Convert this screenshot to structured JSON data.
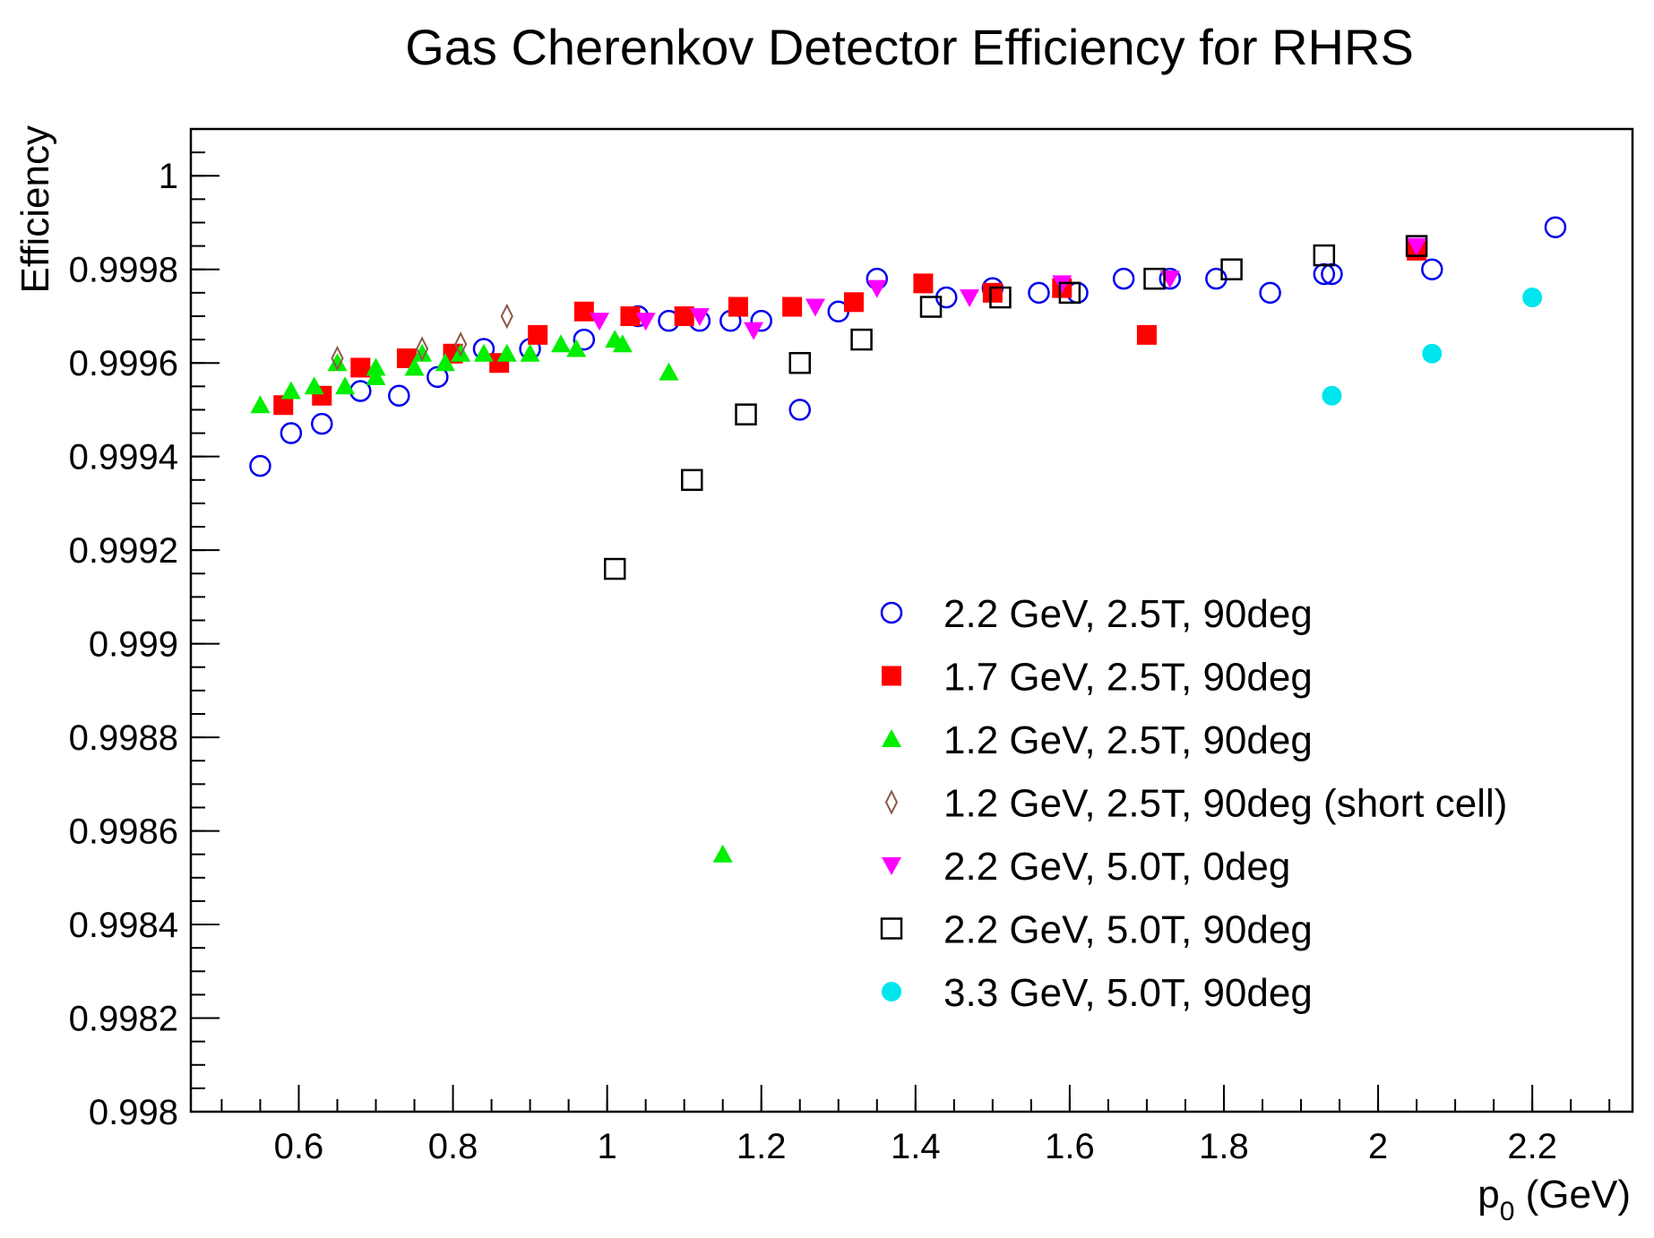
{
  "chart_data": {
    "type": "scatter",
    "title": "Gas Cherenkov Detector Efficiency for RHRS",
    "xlabel_main": "p",
    "xlabel_sub": "0",
    "xlabel_unit": " (GeV)",
    "ylabel": "Efficiency",
    "xlim": [
      0.46,
      2.33
    ],
    "ylim": [
      0.998,
      1.0001
    ],
    "x_ticks": [
      {
        "v": 0.6,
        "label": "0.6"
      },
      {
        "v": 0.8,
        "label": "0.8"
      },
      {
        "v": 1.0,
        "label": "1"
      },
      {
        "v": 1.2,
        "label": "1.2"
      },
      {
        "v": 1.4,
        "label": "1.4"
      },
      {
        "v": 1.6,
        "label": "1.6"
      },
      {
        "v": 1.8,
        "label": "1.8"
      },
      {
        "v": 2.0,
        "label": "2"
      },
      {
        "v": 2.2,
        "label": "2.2"
      }
    ],
    "y_ticks": [
      {
        "v": 0.998,
        "label": "0.998"
      },
      {
        "v": 0.9982,
        "label": "0.9982"
      },
      {
        "v": 0.9984,
        "label": "0.9984"
      },
      {
        "v": 0.9986,
        "label": "0.9986"
      },
      {
        "v": 0.9988,
        "label": "0.9988"
      },
      {
        "v": 0.999,
        "label": "0.999"
      },
      {
        "v": 0.9992,
        "label": "0.9992"
      },
      {
        "v": 0.9994,
        "label": "0.9994"
      },
      {
        "v": 0.9996,
        "label": "0.9996"
      },
      {
        "v": 0.9998,
        "label": "0.9998"
      },
      {
        "v": 1.0,
        "label": "1"
      }
    ],
    "legend_position": "lower-right inside plot",
    "series": [
      {
        "name": "2.2 GeV, 2.5T, 90deg",
        "marker": "open-circle",
        "color": "#0000ee",
        "points": [
          [
            0.55,
            0.99938
          ],
          [
            0.59,
            0.99945
          ],
          [
            0.63,
            0.99947
          ],
          [
            0.68,
            0.99954
          ],
          [
            0.73,
            0.99953
          ],
          [
            0.78,
            0.99957
          ],
          [
            0.84,
            0.99963
          ],
          [
            0.9,
            0.99963
          ],
          [
            0.97,
            0.99965
          ],
          [
            1.04,
            0.9997
          ],
          [
            1.08,
            0.99969
          ],
          [
            1.12,
            0.99969
          ],
          [
            1.16,
            0.99969
          ],
          [
            1.2,
            0.99969
          ],
          [
            1.25,
            0.9995
          ],
          [
            1.3,
            0.99971
          ],
          [
            1.35,
            0.99978
          ],
          [
            1.44,
            0.99974
          ],
          [
            1.5,
            0.99976
          ],
          [
            1.56,
            0.99975
          ],
          [
            1.61,
            0.99975
          ],
          [
            1.67,
            0.99978
          ],
          [
            1.73,
            0.99978
          ],
          [
            1.79,
            0.99978
          ],
          [
            1.86,
            0.99975
          ],
          [
            1.93,
            0.99979
          ],
          [
            1.94,
            0.99979
          ],
          [
            2.07,
            0.9998
          ],
          [
            2.23,
            0.99989
          ]
        ]
      },
      {
        "name": "1.7 GeV, 2.5T, 90deg",
        "marker": "filled-square",
        "color": "#ff0000",
        "points": [
          [
            0.58,
            0.99951
          ],
          [
            0.63,
            0.99953
          ],
          [
            0.68,
            0.99959
          ],
          [
            0.74,
            0.99961
          ],
          [
            0.8,
            0.99962
          ],
          [
            0.86,
            0.9996
          ],
          [
            0.91,
            0.99966
          ],
          [
            0.97,
            0.99971
          ],
          [
            1.03,
            0.9997
          ],
          [
            1.1,
            0.9997
          ],
          [
            1.17,
            0.99972
          ],
          [
            1.24,
            0.99972
          ],
          [
            1.32,
            0.99973
          ],
          [
            1.41,
            0.99977
          ],
          [
            1.5,
            0.99975
          ],
          [
            1.59,
            0.99976
          ],
          [
            1.7,
            0.99966
          ],
          [
            2.05,
            0.99984
          ]
        ]
      },
      {
        "name": "1.2 GeV, 2.5T, 90deg",
        "marker": "filled-triangle-up",
        "color": "#00ee00",
        "points": [
          [
            0.55,
            0.99951
          ],
          [
            0.59,
            0.99954
          ],
          [
            0.62,
            0.99955
          ],
          [
            0.65,
            0.9996
          ],
          [
            0.66,
            0.99955
          ],
          [
            0.7,
            0.99957
          ],
          [
            0.7,
            0.99959
          ],
          [
            0.75,
            0.99959
          ],
          [
            0.76,
            0.99962
          ],
          [
            0.79,
            0.9996
          ],
          [
            0.81,
            0.99962
          ],
          [
            0.84,
            0.99962
          ],
          [
            0.87,
            0.99962
          ],
          [
            0.9,
            0.99962
          ],
          [
            0.94,
            0.99964
          ],
          [
            0.96,
            0.99963
          ],
          [
            1.01,
            0.99965
          ],
          [
            1.02,
            0.99964
          ],
          [
            1.08,
            0.99958
          ],
          [
            1.15,
            0.99855
          ]
        ]
      },
      {
        "name": "1.2 GeV, 2.5T, 90deg (short cell)",
        "marker": "open-diamond",
        "color": "#8b5a4a",
        "points": [
          [
            0.65,
            0.99961
          ],
          [
            0.76,
            0.99963
          ],
          [
            0.81,
            0.99964
          ],
          [
            0.87,
            0.9997
          ]
        ]
      },
      {
        "name": "2.2 GeV, 5.0T, 0deg",
        "marker": "filled-triangle-down",
        "color": "#ff00ff",
        "points": [
          [
            0.99,
            0.99969
          ],
          [
            1.05,
            0.99969
          ],
          [
            1.12,
            0.9997
          ],
          [
            1.19,
            0.99967
          ],
          [
            1.27,
            0.99972
          ],
          [
            1.35,
            0.99976
          ],
          [
            1.47,
            0.99974
          ],
          [
            1.59,
            0.99977
          ],
          [
            1.73,
            0.99978
          ],
          [
            2.05,
            0.99985
          ]
        ]
      },
      {
        "name": "2.2 GeV, 5.0T, 90deg",
        "marker": "open-square",
        "color": "#000000",
        "points": [
          [
            1.01,
            0.99916
          ],
          [
            1.11,
            0.99935
          ],
          [
            1.18,
            0.99949
          ],
          [
            1.25,
            0.9996
          ],
          [
            1.33,
            0.99965
          ],
          [
            1.42,
            0.99972
          ],
          [
            1.51,
            0.99974
          ],
          [
            1.6,
            0.99975
          ],
          [
            1.71,
            0.99978
          ],
          [
            1.81,
            0.9998
          ],
          [
            1.93,
            0.99983
          ],
          [
            2.05,
            0.99985
          ]
        ]
      },
      {
        "name": "3.3 GeV, 5.0T, 90deg",
        "marker": "filled-circle",
        "color": "#00e5ee",
        "points": [
          [
            1.94,
            0.99953
          ],
          [
            2.07,
            0.99962
          ],
          [
            2.2,
            0.99974
          ]
        ]
      }
    ]
  }
}
